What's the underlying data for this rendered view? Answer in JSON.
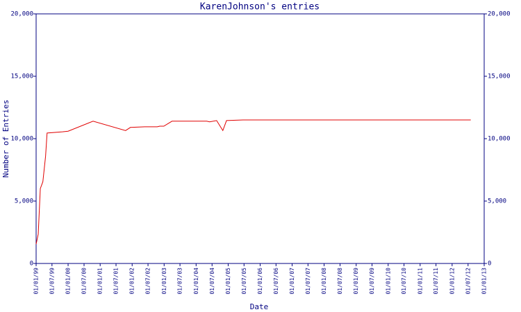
{
  "chart_data": {
    "type": "line",
    "title": "KarenJohnson's entries",
    "x_label": "Date",
    "y_label": "Number of Entries",
    "x": [
      "1999-01-01",
      "1999-01-25",
      "1999-02-18",
      "1999-03-19",
      "1999-04-19",
      "1999-05-06",
      "1999-10-28",
      "2000-01-01",
      "2000-10-12",
      "2001-10-18",
      "2001-12-12",
      "2002-05-25",
      "2002-10-15",
      "2002-11-12",
      "2002-12-28",
      "2003-04-01",
      "2004-05-01",
      "2004-06-03",
      "2004-08-22",
      "2004-11-01",
      "2004-12-13",
      "2005-06-19",
      "2012-08-01"
    ],
    "series": [
      {
        "color": "#e00000",
        "values": [
          1550,
          2350,
          6000,
          6550,
          8600,
          10450,
          10550,
          10600,
          11400,
          10650,
          10900,
          10950,
          10950,
          11000,
          11000,
          11400,
          11400,
          11350,
          11450,
          10650,
          11450,
          11500,
          11500
        ]
      }
    ],
    "xlim": [
      "1999-01-01",
      "2013-01-01"
    ],
    "xticks": [
      {
        "value": "1999-01-01",
        "label": "01/01/99"
      },
      {
        "value": "1999-07-01",
        "label": "01/07/99"
      },
      {
        "value": "2000-01-01",
        "label": "01/01/00"
      },
      {
        "value": "2000-07-01",
        "label": "01/07/00"
      },
      {
        "value": "2001-01-01",
        "label": "01/01/01"
      },
      {
        "value": "2001-07-01",
        "label": "01/07/01"
      },
      {
        "value": "2002-01-01",
        "label": "01/01/02"
      },
      {
        "value": "2002-07-01",
        "label": "01/07/02"
      },
      {
        "value": "2003-01-01",
        "label": "01/01/03"
      },
      {
        "value": "2003-07-01",
        "label": "01/07/03"
      },
      {
        "value": "2004-01-01",
        "label": "01/01/04"
      },
      {
        "value": "2004-07-01",
        "label": "01/07/04"
      },
      {
        "value": "2005-01-01",
        "label": "01/01/05"
      },
      {
        "value": "2005-07-01",
        "label": "01/07/05"
      },
      {
        "value": "2006-01-01",
        "label": "01/01/06"
      },
      {
        "value": "2006-07-01",
        "label": "01/07/06"
      },
      {
        "value": "2007-01-01",
        "label": "01/01/07"
      },
      {
        "value": "2007-07-01",
        "label": "01/07/07"
      },
      {
        "value": "2008-01-01",
        "label": "01/01/08"
      },
      {
        "value": "2008-07-01",
        "label": "01/07/08"
      },
      {
        "value": "2009-01-01",
        "label": "01/01/09"
      },
      {
        "value": "2009-07-01",
        "label": "01/07/09"
      },
      {
        "value": "2010-01-01",
        "label": "01/01/10"
      },
      {
        "value": "2010-07-01",
        "label": "01/07/10"
      },
      {
        "value": "2011-01-01",
        "label": "01/01/11"
      },
      {
        "value": "2011-07-01",
        "label": "01/07/11"
      },
      {
        "value": "2012-01-01",
        "label": "01/01/12"
      },
      {
        "value": "2012-07-01",
        "label": "01/07/12"
      },
      {
        "value": "2013-01-01",
        "label": "01/01/13"
      }
    ],
    "ylim": [
      0,
      20000
    ],
    "yticks": [
      0,
      {
        "value": 5000,
        "label": "5,000"
      },
      {
        "value": 10000,
        "label": "10,000"
      },
      {
        "value": 15000,
        "label": "15,000"
      },
      {
        "value": 20000,
        "label": "20,000"
      }
    ],
    "y2lim": [
      0,
      20000
    ],
    "y2ticks": [
      0,
      {
        "value": 5000,
        "label": "5,000"
      },
      {
        "value": 10000,
        "label": "10,000"
      },
      {
        "value": 15000,
        "label": "15,000"
      },
      {
        "value": 20000,
        "label": "20,000"
      }
    ],
    "grid": false
  }
}
